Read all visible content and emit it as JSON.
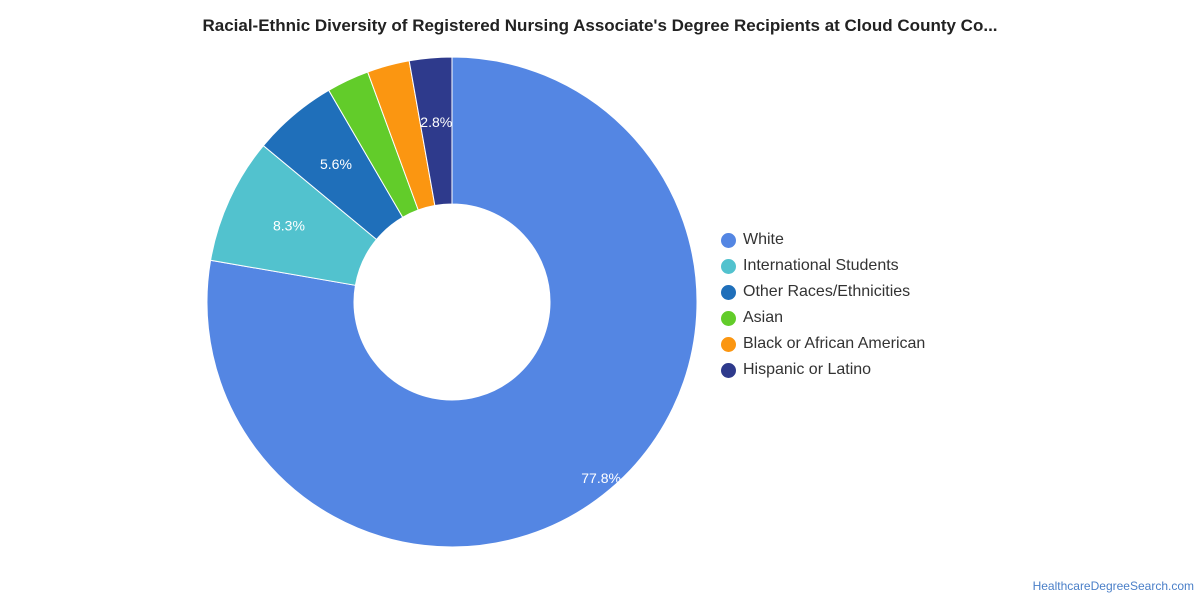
{
  "chart_data": {
    "type": "pie",
    "variant": "donut",
    "title": "Racial-Ethnic Diversity of Registered Nursing Associate's Degree Recipients at Cloud County Co...",
    "categories": [
      "White",
      "International Students",
      "Other Races/Ethnicities",
      "Asian",
      "Black or African American",
      "Hispanic or Latino"
    ],
    "values": [
      77.8,
      8.3,
      5.6,
      2.8,
      2.8,
      2.8
    ],
    "data_labels": [
      "77.8%",
      "8.3%",
      "5.6%",
      "",
      "",
      "2.8%"
    ],
    "colors": [
      "#5486e3",
      "#52c2ce",
      "#1f6fba",
      "#62cc2a",
      "#fb9611",
      "#2e3a8c"
    ],
    "legend_position": "right"
  },
  "source": "HealthcareDegreeSearch.com"
}
